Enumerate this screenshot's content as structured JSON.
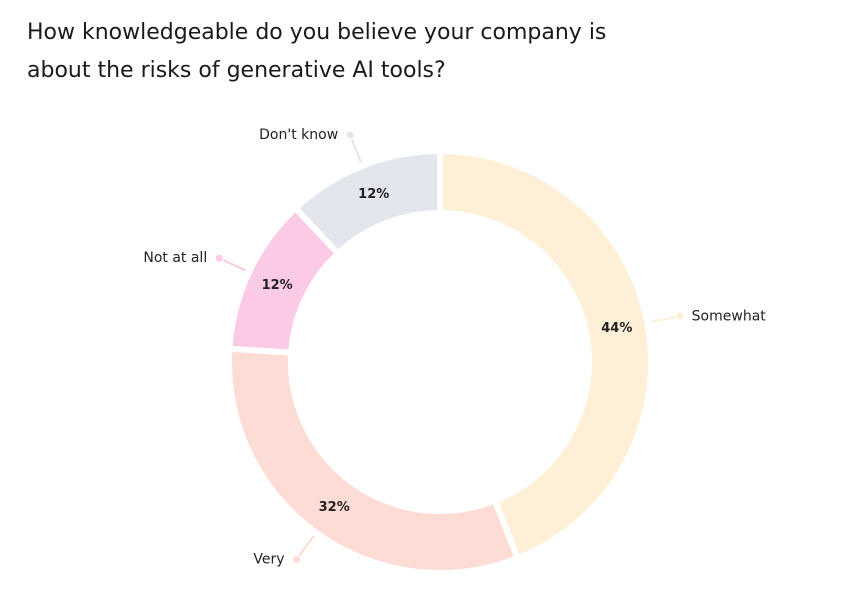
{
  "chart_data": {
    "type": "donut",
    "title": "How knowledgeable do you believe your company is about the risks of generative AI tools?",
    "categories": [
      "Somewhat",
      "Very",
      "Not at all",
      "Don't know"
    ],
    "values": [
      44,
      32,
      12,
      12
    ],
    "value_labels": [
      "44%",
      "32%",
      "12%",
      "12%"
    ],
    "colors": [
      "#fdf0d6",
      "#fddcd5",
      "#fbcae7",
      "#e3e6ed"
    ]
  }
}
